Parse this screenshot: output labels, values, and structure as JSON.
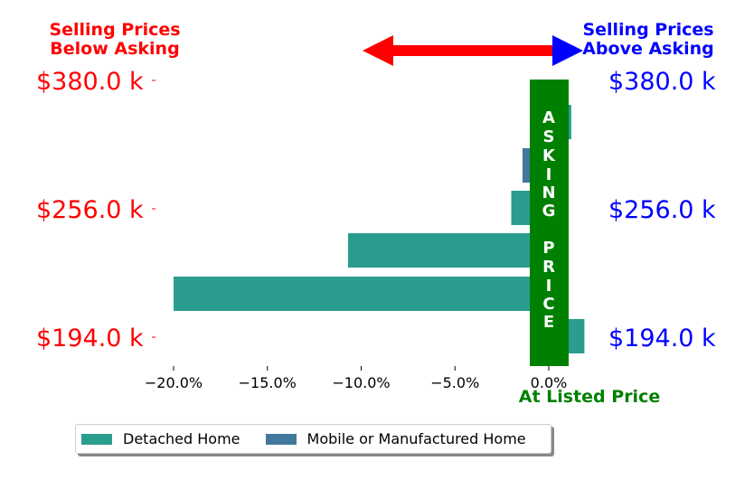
{
  "header": {
    "left_title_line1": "Selling Prices",
    "left_title_line2": "Below Asking",
    "right_title_line1": "Selling Prices",
    "right_title_line2": "Above Asking",
    "left_color": "#ff0000",
    "right_color": "#0000ff"
  },
  "band": {
    "letters": [
      "A",
      "S",
      "K",
      "I",
      "N",
      "G",
      "",
      "P",
      "R",
      "I",
      "C",
      "E"
    ],
    "color": "#008000",
    "xlabel": "At Listed Price"
  },
  "chart_data": {
    "type": "bar",
    "orientation": "horizontal",
    "price_labels": [
      "$380.0 k",
      "$256.0 k",
      "$194.0 k"
    ],
    "x_ticks": [
      -20,
      -15,
      -10,
      -5,
      0
    ],
    "x_tick_labels": [
      "−20.0%",
      "−15.0%",
      "−10.0%",
      "−5.0%",
      "0.0%"
    ],
    "xlim": [
      -21,
      4.5
    ],
    "series": [
      {
        "name": "Detached Home",
        "color": "#2a9d8f"
      },
      {
        "name": "Mobile or Manufactured Home",
        "color": "#41789b"
      }
    ],
    "bars": [
      {
        "series": 0,
        "value": 1.2
      },
      {
        "series": 1,
        "value": -1.4
      },
      {
        "series": 0,
        "value": -2.0
      },
      {
        "series": 0,
        "value": -10.7
      },
      {
        "series": 0,
        "value": -20.0
      },
      {
        "series": 0,
        "value": 1.9
      }
    ]
  }
}
